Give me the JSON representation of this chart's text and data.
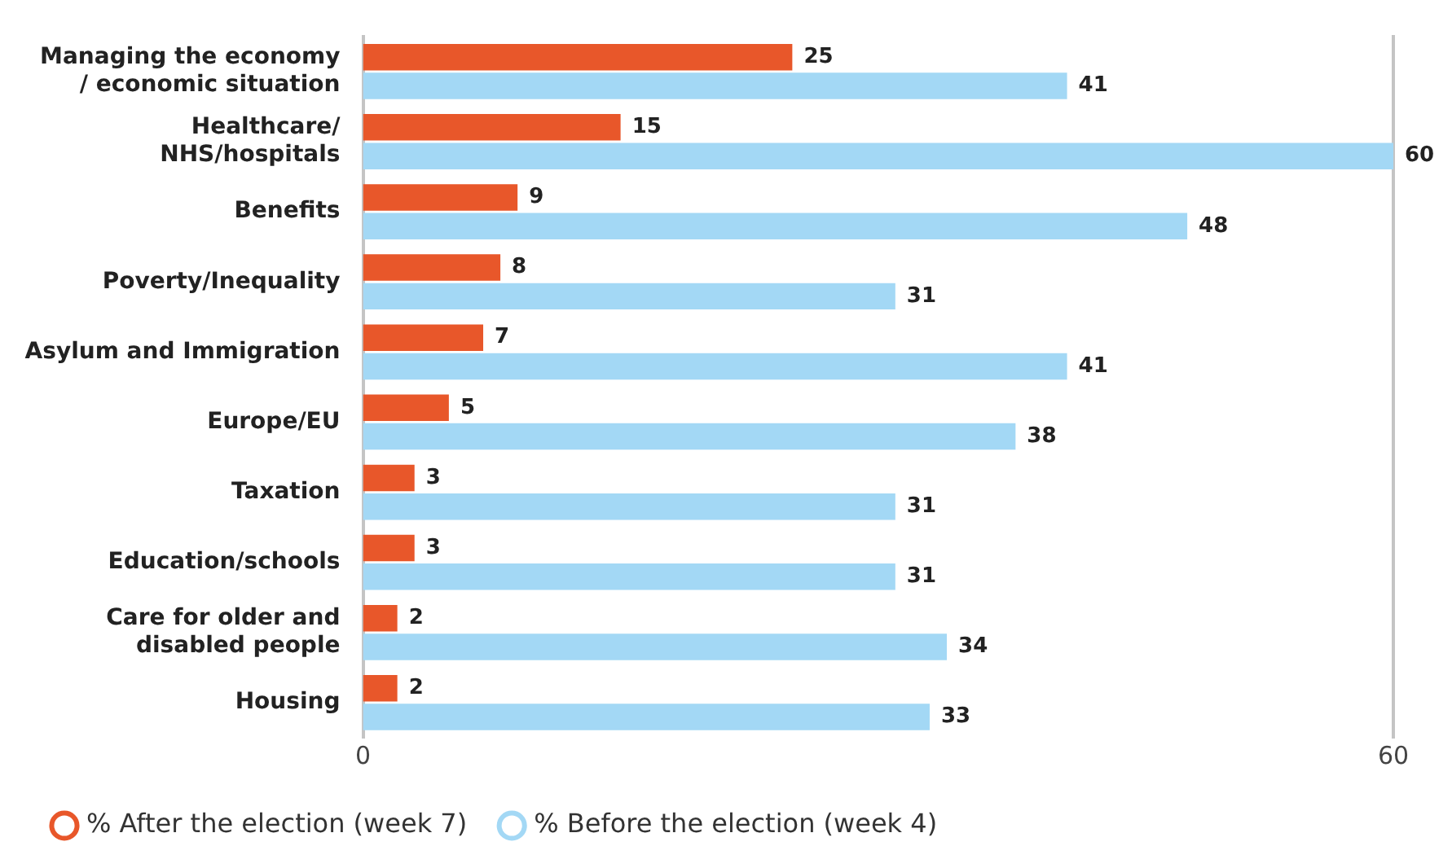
{
  "chart_data": {
    "type": "bar",
    "orientation": "horizontal",
    "categories": [
      "Managing the economy\n/ economic situation",
      "Healthcare/\nNHS/hospitals",
      "Benefits",
      "Poverty/Inequality",
      "Asylum and Immigration",
      "Europe/EU",
      "Taxation",
      "Education/schools",
      "Care for older and\ndisabled people",
      "Housing"
    ],
    "series": [
      {
        "name": "% After the election (week 7)",
        "color": "#e8572a",
        "values": [
          25,
          15,
          9,
          8,
          7,
          5,
          3,
          3,
          2,
          2
        ]
      },
      {
        "name": "% Before the election (week 4)",
        "color": "#a3d8f5",
        "values": [
          41,
          60,
          48,
          31,
          41,
          38,
          31,
          31,
          34,
          33
        ]
      }
    ],
    "xlim": [
      0,
      60
    ],
    "xticks": [
      0,
      60
    ],
    "legend": "bottom left",
    "data_labels": true
  }
}
